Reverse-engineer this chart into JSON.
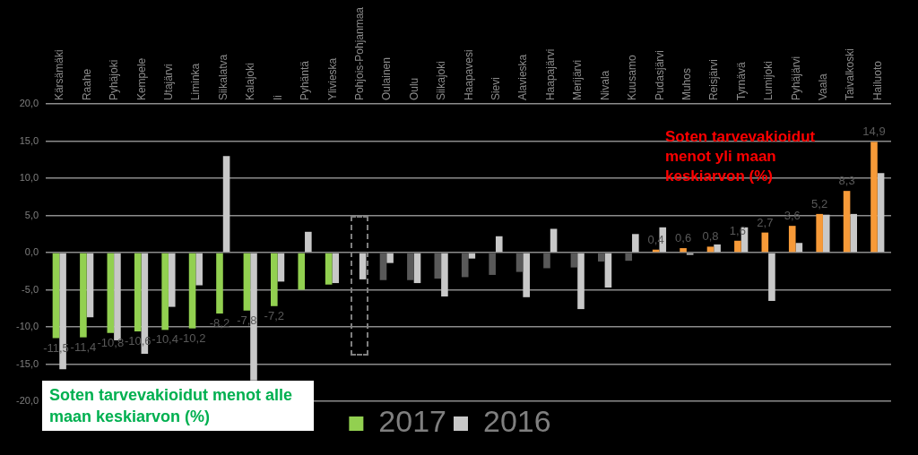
{
  "chart_data": {
    "type": "bar",
    "categories": [
      "Kärsämäki",
      "Raahe",
      "Pyhäjoki",
      "Kempele",
      "Utajärvi",
      "Liminka",
      "Siikalatva",
      "Kalajoki",
      "Ii",
      "Pyhäntä",
      "Ylivieska",
      "Pohjois-Pohjanmaa",
      "Oulainen",
      "Oulu",
      "Siikajoki",
      "Haapavesi",
      "Sievi",
      "Alavieska",
      "Haapajärvi",
      "Merijärvi",
      "Nivala",
      "Kuusamo",
      "Pudasjärvi",
      "Muhos",
      "Reisjärvi",
      "Tyrnävä",
      "Lumijoki",
      "Pyhäjärvi",
      "Vaala",
      "Taivalkoski",
      "Hailuoto"
    ],
    "series": [
      {
        "name": "2017",
        "color": "#92d050",
        "values": [
          -11.5,
          -11.4,
          -10.8,
          -10.6,
          -10.4,
          -10.2,
          -8.2,
          -7.8,
          -7.2,
          -5.0,
          -4.3,
          null,
          -3.7,
          -3.7,
          -3.5,
          -3.3,
          -3.0,
          -2.6,
          -2.1,
          -2.0,
          -1.2,
          -1.1,
          0.4,
          0.6,
          0.8,
          1.6,
          2.7,
          3.6,
          5.2,
          8.3,
          14.9
        ],
        "colors": [
          "#92d050",
          "#92d050",
          "#92d050",
          "#92d050",
          "#92d050",
          "#92d050",
          "#92d050",
          "#92d050",
          "#92d050",
          "#92d050",
          "#92d050",
          "#92d050",
          "#595959",
          "#595959",
          "#595959",
          "#595959",
          "#595959",
          "#595959",
          "#595959",
          "#595959",
          "#595959",
          "#595959",
          "#f79a38",
          "#f79a38",
          "#f79a38",
          "#f79a38",
          "#f79a38",
          "#f79a38",
          "#f79a38",
          "#f79a38",
          "#f79a38"
        ],
        "value_labels": [
          "-11,5",
          "-11,4",
          "-10,8",
          "-10,6",
          "-10,4",
          "-10,2",
          "-8,2",
          "-7,8",
          "-7,2",
          null,
          null,
          null,
          null,
          null,
          null,
          null,
          null,
          null,
          null,
          null,
          null,
          null,
          "0,4",
          "0,6",
          "0,8",
          "1,6",
          "2,7",
          "3,6",
          "5,2",
          "8,3",
          "14,9"
        ]
      },
      {
        "name": "2016",
        "color": "#c8c8c8",
        "values": [
          -15.7,
          -8.7,
          -11.8,
          -13.6,
          -7.3,
          -4.4,
          13.0,
          -17.2,
          -3.9,
          2.8,
          -4.1,
          -3.6,
          -1.4,
          -4.1,
          -5.9,
          -0.8,
          2.2,
          -6.0,
          3.2,
          -7.6,
          -4.7,
          2.5,
          3.4,
          -0.3,
          1.1,
          3.4,
          -6.5,
          1.3,
          5.1,
          5.2,
          10.7
        ]
      }
    ],
    "ylim": [
      -20,
      20
    ],
    "yticks": [
      {
        "value": -20,
        "label": "-20,0"
      },
      {
        "value": -15,
        "label": "-15,0"
      },
      {
        "value": -10,
        "label": "-10,0"
      },
      {
        "value": -5,
        "label": "-5,0"
      },
      {
        "value": 0,
        "label": "0,0"
      },
      {
        "value": 5,
        "label": "5,0"
      },
      {
        "value": 10,
        "label": "10,0"
      },
      {
        "value": 15,
        "label": "15,0"
      },
      {
        "value": 20,
        "label": "20,0"
      }
    ],
    "grid": "y",
    "legend": "bottom",
    "annotations": [
      "Soten tarvevakioidut menot yli maan keskiarvon (%)",
      "Soten tarvevakioidut menot alle maan keskiarvon (%)"
    ]
  }
}
